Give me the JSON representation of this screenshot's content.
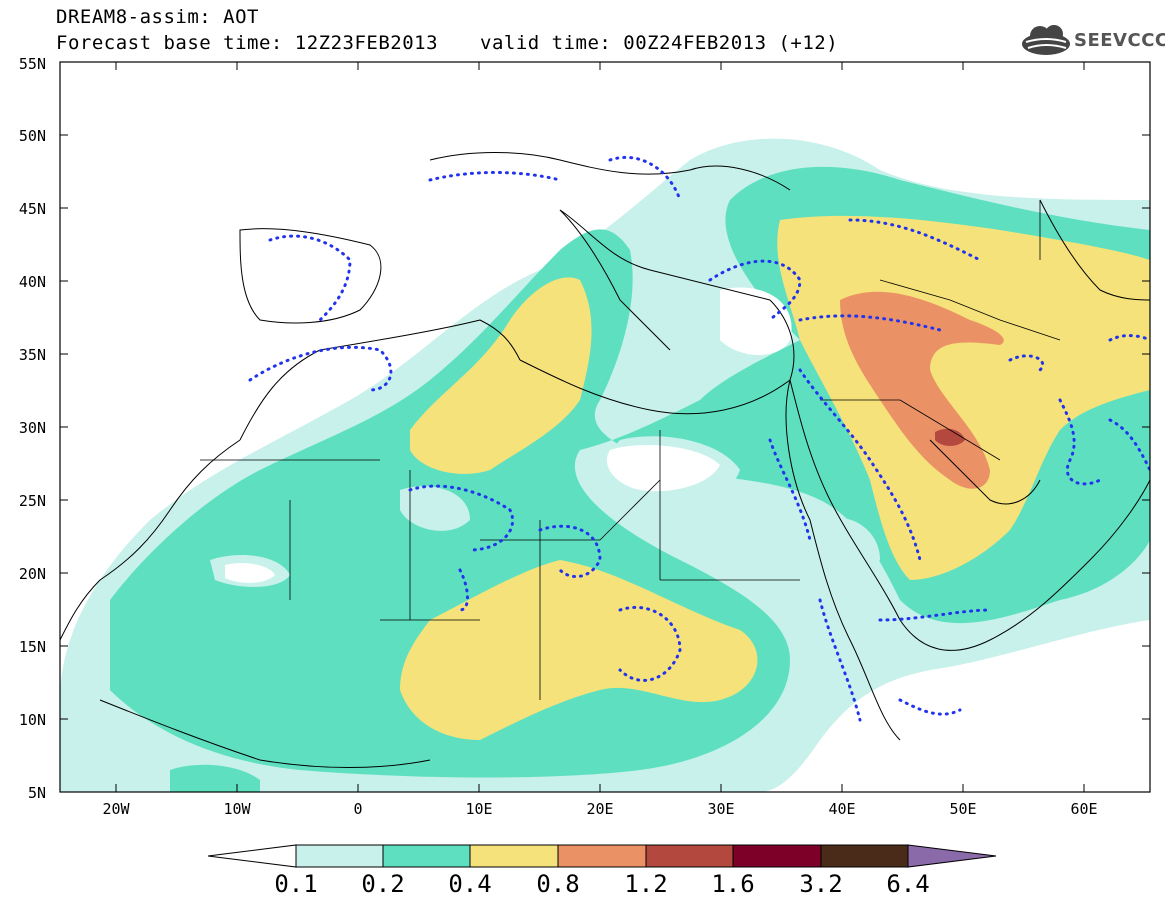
{
  "title": {
    "line1": "DREAM8-assim: AOT",
    "line2": "Forecast base time: 12Z23FEB2013",
    "valid": "valid time: 00Z24FEB2013 (+12)"
  },
  "logo": {
    "text": "SEEVCCC",
    "icon": "cloud-logo-icon"
  },
  "map": {
    "extent": {
      "lon_min": -25,
      "lon_max": 65,
      "lat_min": 5,
      "lat_max": 55
    },
    "lat_labels": [
      "55N",
      "50N",
      "45N",
      "40N",
      "35N",
      "30N",
      "25N",
      "20N",
      "15N",
      "10N",
      "5N"
    ],
    "lon_labels": [
      "20W",
      "10W",
      "0",
      "10E",
      "20E",
      "30E",
      "40E",
      "50E",
      "60E"
    ]
  },
  "colorbar": {
    "labels": [
      "0.1",
      "0.2",
      "0.4",
      "0.8",
      "1.2",
      "1.6",
      "3.2",
      "6.4"
    ],
    "colors": [
      "#ffffff",
      "#c7f1ea",
      "#5ee0c0",
      "#f5e27a",
      "#ea9266",
      "#b3493e",
      "#7d0028",
      "#4a2a18",
      "#8a6aa8"
    ]
  },
  "colors": {
    "aot_0_1": "#c7f1ea",
    "aot_0_2": "#5ee0c0",
    "aot_0_4": "#f5e27a",
    "aot_0_8": "#ea9266",
    "aot_1_2": "#b3493e",
    "dotted_contour": "#2233ee"
  }
}
